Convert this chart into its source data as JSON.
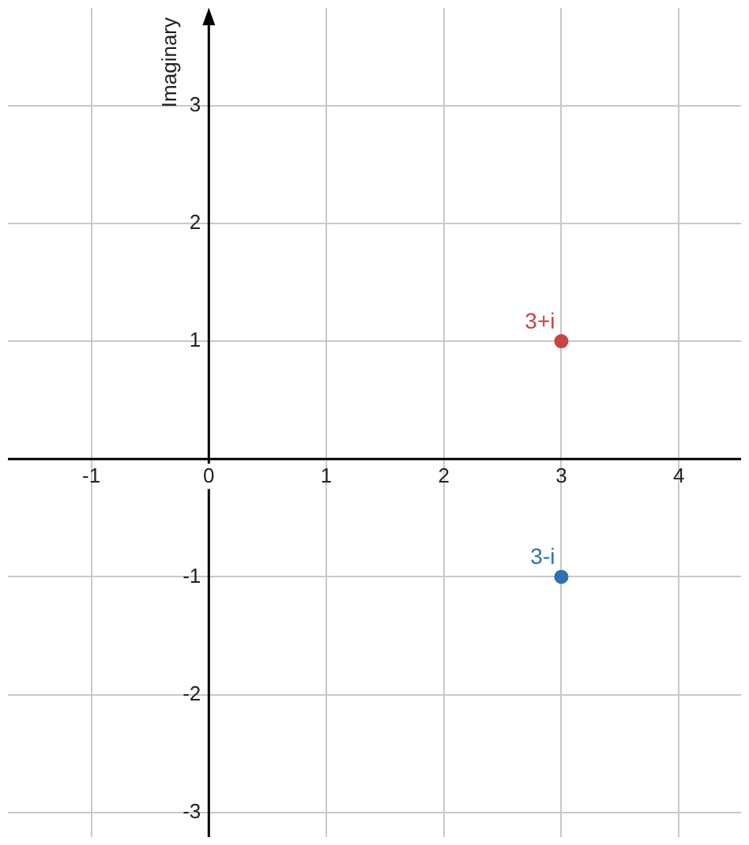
{
  "chart_data": {
    "type": "scatter",
    "ylabel": "Imaginary",
    "x": [
      3,
      3
    ],
    "values": [
      1,
      -1
    ],
    "colors": [
      "#c74440",
      "#2d70b3"
    ],
    "marker": "circle",
    "xlim": [
      -1.71,
      4.53
    ],
    "ylim": [
      -3.21,
      3.83
    ],
    "xticks": [
      -1,
      0,
      1,
      2,
      3,
      4
    ],
    "yticks": [
      -3,
      -2,
      -1,
      {
        "value": 0,
        "label": null
      },
      1,
      2,
      3
    ],
    "grid": true,
    "legend": false,
    "annotations": [
      {
        "text": "3+i",
        "x": 3,
        "y": 1
      },
      {
        "text": "3-i",
        "x": 3,
        "y": -1
      }
    ]
  }
}
